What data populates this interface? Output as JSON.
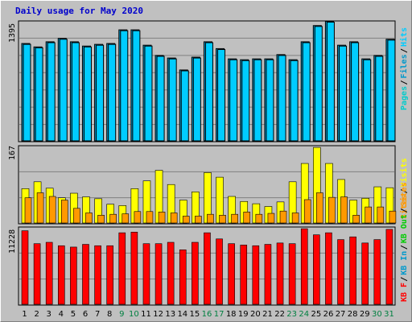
{
  "title": "Daily usage for May 2020",
  "colors": {
    "hits": "#00ccff",
    "files": "#0099cc",
    "pages": "#00cccc",
    "visits": "#ffff00",
    "sites": "#ff9900",
    "kbytes": "#ff0000",
    "weekday_label": "#000000",
    "weekend_label": "#008040"
  },
  "scale_labels": {
    "hits": "1395",
    "visits": "167",
    "kbytes": "11228"
  },
  "legends": {
    "hits": [
      "Pages",
      "Files",
      "Hits"
    ],
    "visits": [
      "Sites",
      "Visits"
    ],
    "kbytes": [
      "KB F",
      "KB In",
      "KB Out",
      "Sites"
    ]
  },
  "chart_data": {
    "type": "bar",
    "title": "Daily usage for May 2020",
    "categories": [
      "1",
      "2",
      "3",
      "4",
      "5",
      "6",
      "7",
      "8",
      "9",
      "10",
      "11",
      "12",
      "13",
      "14",
      "15",
      "16",
      "17",
      "18",
      "19",
      "20",
      "21",
      "22",
      "23",
      "24",
      "25",
      "26",
      "27",
      "28",
      "29",
      "30",
      "31"
    ],
    "weekend_days": [
      "9",
      "10",
      "16",
      "17",
      "23",
      "24",
      "30",
      "31"
    ],
    "panels": [
      {
        "name": "hits",
        "max": 1395,
        "series": [
          {
            "name": "Hits",
            "values": [
              1140,
              1100,
              1160,
              1200,
              1160,
              1110,
              1130,
              1140,
              1300,
              1300,
              1120,
              1000,
              970,
              830,
              980,
              1160,
              1080,
              960,
              950,
              960,
              960,
              1010,
              950,
              1160,
              1350,
              1400,
              1120,
              1160,
              960,
              1000,
              1190
            ]
          },
          {
            "name": "Files",
            "values": [
              1130,
              1090,
              1150,
              1190,
              1150,
              1100,
              1120,
              1130,
              1290,
              1290,
              1110,
              990,
              960,
              820,
              970,
              1150,
              1070,
              950,
              940,
              950,
              950,
              1000,
              940,
              1150,
              1340,
              1390,
              1110,
              1150,
              950,
              990,
              1180
            ]
          },
          {
            "name": "Pages",
            "values": [
              40,
              40,
              40,
              40,
              40,
              40,
              40,
              40,
              40,
              40,
              40,
              40,
              40,
              40,
              40,
              40,
              40,
              40,
              40,
              40,
              40,
              40,
              40,
              40,
              40,
              40,
              40,
              40,
              40,
              40,
              40
            ]
          }
        ]
      },
      {
        "name": "visits",
        "max": 167,
        "series": [
          {
            "name": "Visits",
            "values": [
              75,
              90,
              76,
              55,
              65,
              57,
              53,
              41,
              38,
              75,
              92,
              115,
              84,
              50,
              68,
              110,
              100,
              58,
              47,
              42,
              36,
              46,
              90,
              130,
              165,
              130,
              95,
              50,
              54,
              79,
              77
            ]
          },
          {
            "name": "Sites",
            "values": [
              55,
              66,
              58,
              50,
              32,
              22,
              17,
              19,
              20,
              25,
              25,
              24,
              22,
              15,
              15,
              19,
              17,
              19,
              24,
              19,
              21,
              26,
              22,
              51,
              66,
              56,
              57,
              17,
              35,
              35,
              26
            ]
          }
        ]
      },
      {
        "name": "kbytes",
        "max": 11228,
        "series": [
          {
            "name": "KBytes",
            "values": [
              10800,
              8900,
              9100,
              8600,
              8400,
              8800,
              8600,
              8600,
              10500,
              10600,
              8900,
              8900,
              9100,
              8000,
              9100,
              10500,
              9600,
              8900,
              8700,
              8600,
              8800,
              9000,
              8900,
              11100,
              10200,
              10500,
              9500,
              9900,
              9000,
              9500,
              11000
            ]
          }
        ]
      }
    ]
  }
}
